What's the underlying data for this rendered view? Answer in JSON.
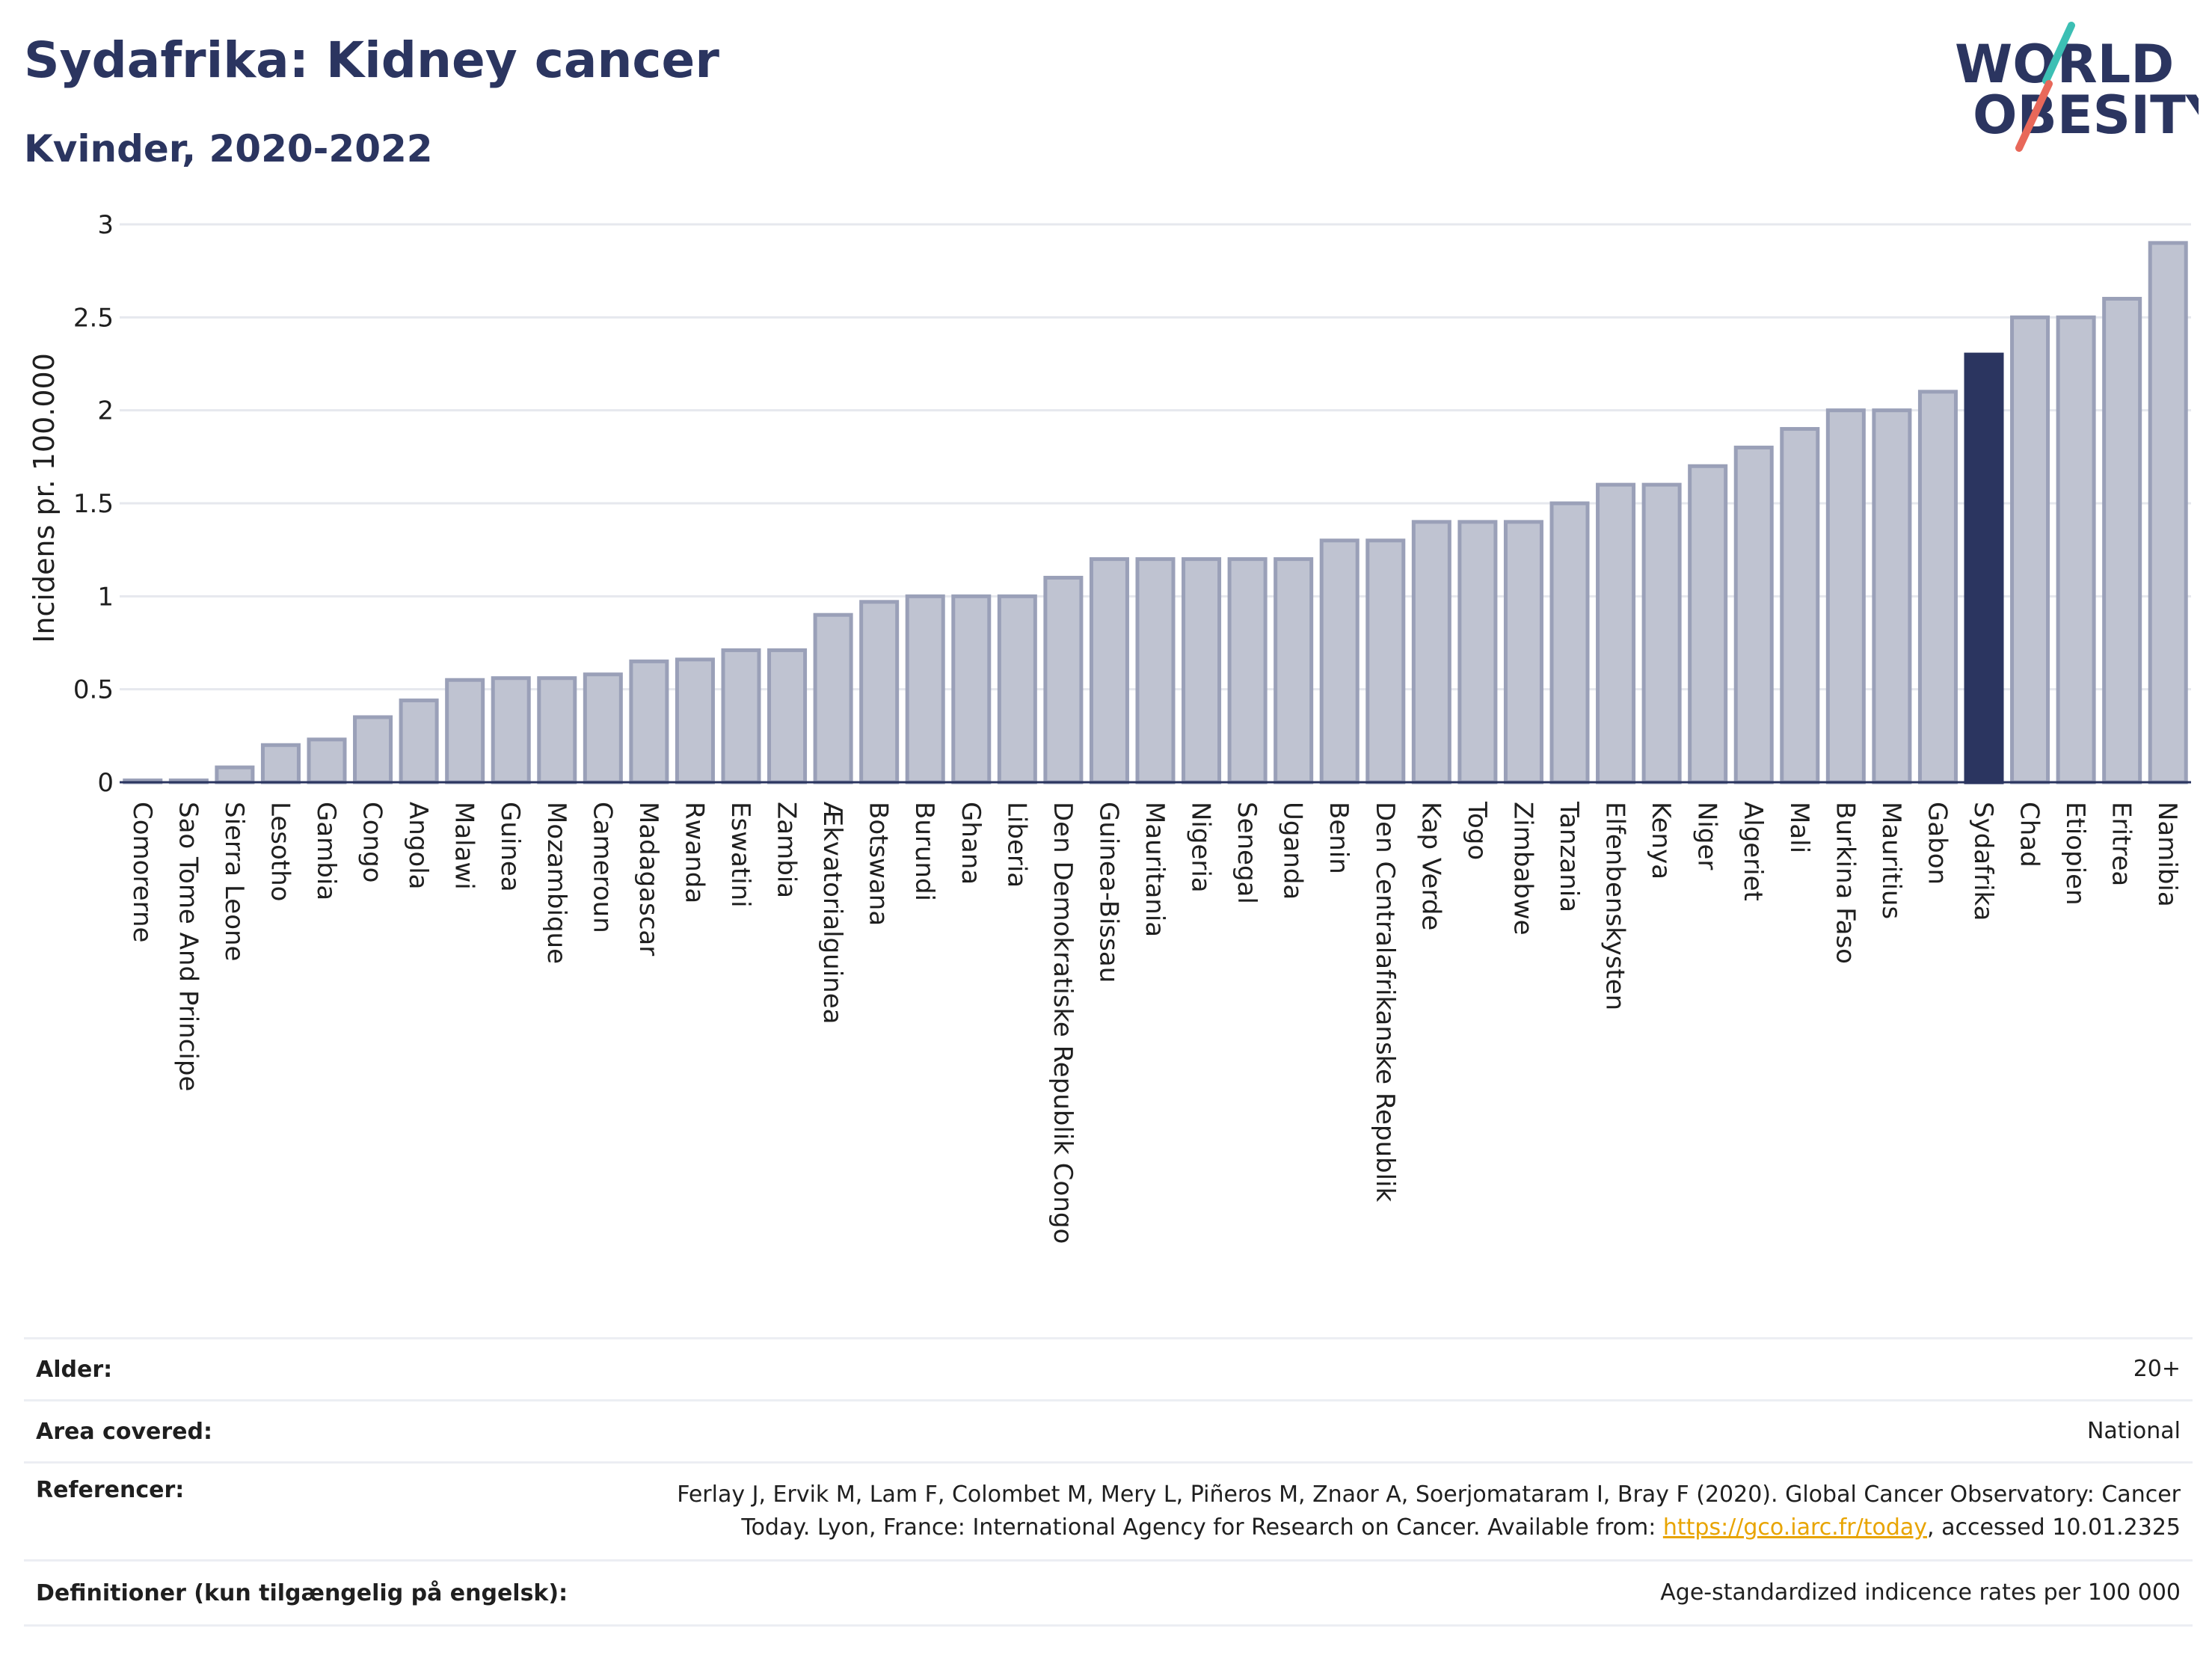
{
  "header": {
    "title": "Sydafrika: Kidney cancer",
    "subtitle": "Kvinder, 2020-2022"
  },
  "logo": {
    "line1": "WORLD",
    "line2": "OBESITY",
    "colors": {
      "text": "#2b3560",
      "stroke_teal": "#3cbfb4",
      "stroke_red": "#e8685a"
    }
  },
  "chart_data": {
    "type": "bar",
    "title": "Sydafrika: Kidney cancer",
    "subtitle": "Kvinder, 2020-2022",
    "ylabel": "Incidens pr. 100.000",
    "xlabel": "",
    "ylim": [
      0,
      3
    ],
    "yticks": [
      0,
      0.5,
      1,
      1.5,
      2,
      2.5,
      3
    ],
    "ytick_labels": [
      "0",
      "0.5",
      "1",
      "1.5",
      "2",
      "2.5",
      "3"
    ],
    "grid": true,
    "highlight": "Sydafrika",
    "colors": {
      "bar": "#bfc3d1",
      "bar_stroke": "#9aa0b8",
      "highlight": "#2b3560"
    },
    "categories": [
      "Comorerne",
      "Sao Tome And Principe",
      "Sierra Leone",
      "Lesotho",
      "Gambia",
      "Congo",
      "Angola",
      "Malawi",
      "Guinea",
      "Mozambique",
      "Cameroun",
      "Madagascar",
      "Rwanda",
      "Eswatini",
      "Zambia",
      "Ækvatorialguinea",
      "Botswana",
      "Burundi",
      "Ghana",
      "Liberia",
      "Den Demokratiske Republik Congo",
      "Guinea-Bissau",
      "Mauritania",
      "Nigeria",
      "Senegal",
      "Uganda",
      "Benin",
      "Den Centralafrikanske Republik",
      "Kap Verde",
      "Togo",
      "Zimbabwe",
      "Tanzania",
      "Elfenbenskysten",
      "Kenya",
      "Niger",
      "Algeriet",
      "Mali",
      "Burkina Faso",
      "Mauritius",
      "Gabon",
      "Sydafrika",
      "Chad",
      "Etiopien",
      "Eritrea",
      "Namibia"
    ],
    "values": [
      0.01,
      0.01,
      0.08,
      0.2,
      0.23,
      0.35,
      0.44,
      0.55,
      0.56,
      0.56,
      0.58,
      0.65,
      0.66,
      0.71,
      0.71,
      0.9,
      0.97,
      1.0,
      1.0,
      1.0,
      1.1,
      1.2,
      1.2,
      1.2,
      1.2,
      1.2,
      1.3,
      1.3,
      1.4,
      1.4,
      1.4,
      1.5,
      1.6,
      1.6,
      1.7,
      1.8,
      1.9,
      2.0,
      2.0,
      2.1,
      2.3,
      2.5,
      2.5,
      2.6,
      2.9
    ]
  },
  "info": {
    "rows": [
      {
        "label": "Alder:",
        "value": "20+"
      },
      {
        "label": "Area covered:",
        "value": "National"
      },
      {
        "label": "Referencer:",
        "value_line1": "Ferlay J, Ervik M, Lam F, Colombet M, Mery L, Piñeros M, Znaor A, Soerjomataram I, Bray F (2020). Global Cancer Observatory: Cancer",
        "value_line2_pre": "Today. Lyon, France: International Agency for Research on Cancer. Available from: ",
        "link": "https://gco.iarc.fr/today",
        "value_line2_post": ", accessed 10.01.2325"
      },
      {
        "label": "Definitioner (kun tilgængelig på engelsk):",
        "value": "Age-standardized indicence rates per 100 000"
      }
    ]
  }
}
